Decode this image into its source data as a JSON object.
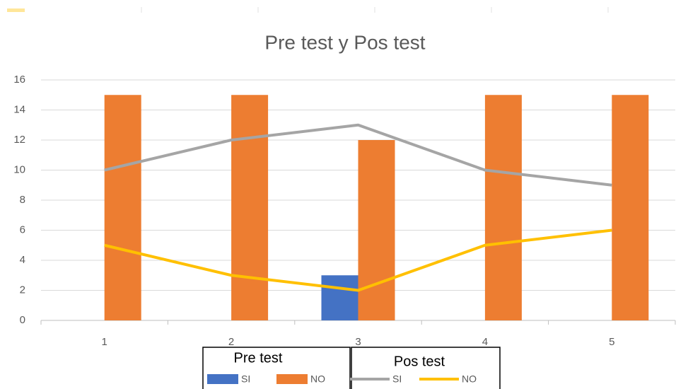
{
  "chart_data": {
    "type": "bar_line",
    "title": "Pre test y Pos test",
    "categories": [
      "1",
      "2",
      "3",
      "4",
      "5"
    ],
    "series": [
      {
        "name": "SI",
        "kind": "bar",
        "color": "#4472c4",
        "values": [
          0,
          0,
          3,
          0,
          0
        ]
      },
      {
        "name": "NO",
        "kind": "bar",
        "color": "#ed7d31",
        "values": [
          15,
          15,
          12,
          15,
          15
        ]
      },
      {
        "name": "SI",
        "kind": "line",
        "color": "#a5a5a5",
        "values": [
          10,
          12,
          13,
          10,
          9
        ]
      },
      {
        "name": "NO",
        "kind": "line",
        "color": "#ffc000",
        "values": [
          5,
          3,
          2,
          5,
          6
        ]
      }
    ],
    "legend_groups": [
      {
        "title": "Pre test",
        "kind": "bar"
      },
      {
        "title": "Pos test",
        "kind": "line"
      }
    ],
    "ylim": [
      0,
      16
    ],
    "yticks": [
      0,
      2,
      4,
      6,
      8,
      10,
      12,
      14,
      16
    ],
    "grid": true
  }
}
